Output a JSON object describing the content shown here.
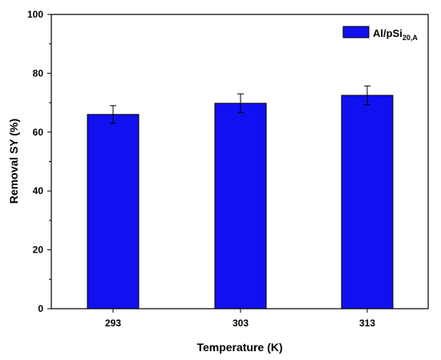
{
  "chart_data": {
    "type": "bar",
    "categories": [
      "293",
      "303",
      "313"
    ],
    "series": [
      {
        "name_main": "Al/pSi",
        "name_sub": "20,A",
        "color": "#1010f0",
        "values": [
          66.0,
          69.8,
          72.5
        ],
        "errors": [
          3.0,
          3.2,
          3.2
        ]
      }
    ],
    "xlabel": "Temperature (K)",
    "ylabel": "Removal SY (%)",
    "ylim": [
      0,
      100
    ],
    "yticks": [
      "0",
      "20",
      "40",
      "60",
      "80",
      "100"
    ],
    "grid": false,
    "legend": "top-right"
  }
}
